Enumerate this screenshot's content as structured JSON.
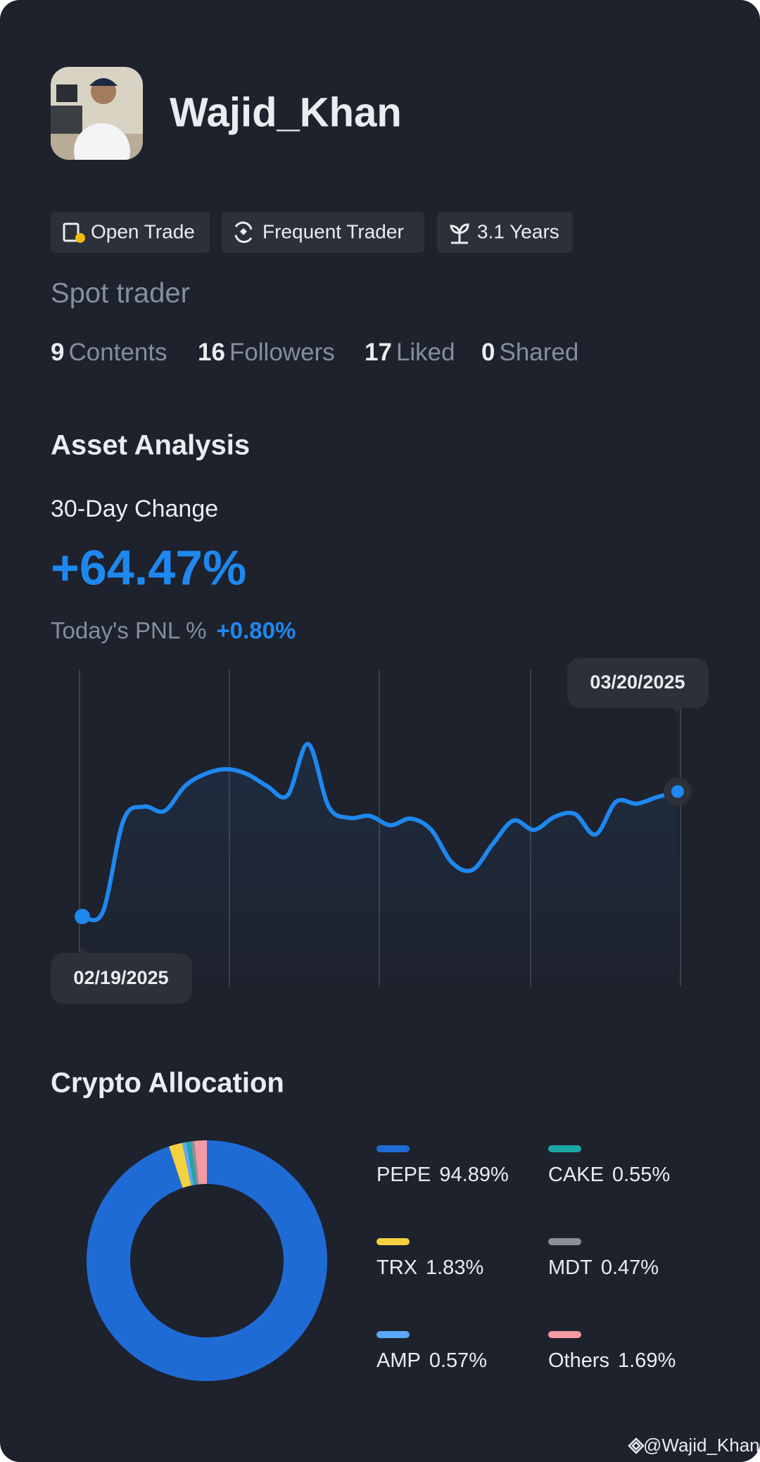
{
  "profile": {
    "name": "Wajid_Khan",
    "role": "Spot trader"
  },
  "badges": [
    "Open Trade",
    "Frequent Trader",
    "3.1 Years"
  ],
  "stats": [
    {
      "value": 9,
      "label": "Contents"
    },
    {
      "value": 16,
      "label": "Followers"
    },
    {
      "value": 17,
      "label": "Liked"
    },
    {
      "value": 0,
      "label": "Shared"
    }
  ],
  "asset_analysis": {
    "title": "Asset Analysis",
    "change_label": "30-Day Change",
    "change_value": "+64.47%",
    "pnl_label": "Today's PNL %",
    "pnl_value": "+0.80%"
  },
  "chart_data": [
    {
      "type": "line",
      "categories": [
        "02/19/2025",
        null,
        null,
        null,
        null,
        null,
        null,
        null,
        null,
        null,
        null,
        null,
        null,
        null,
        null,
        null,
        null,
        null,
        null,
        null,
        null,
        null,
        null,
        null,
        null,
        null,
        null,
        null,
        null,
        "03/20/2025"
      ],
      "values": [
        0,
        2.4,
        49.5,
        56.7,
        54.4,
        67.3,
        73.6,
        76.0,
        73.6,
        67.3,
        62.5,
        89.0,
        56.7,
        50.9,
        51.9,
        47.1,
        50.5,
        44.7,
        27.9,
        24.0,
        37.5,
        49.5,
        44.7,
        51.4,
        52.9,
        42.3,
        59.2,
        58.2,
        61.6,
        64.47
      ],
      "color": "#1e88f0"
    },
    {
      "type": "pie",
      "title": "Crypto Allocation",
      "categories": [
        "PEPE",
        "TRX",
        "AMP",
        "CAKE",
        "MDT",
        "Others"
      ],
      "values": [
        94.89,
        1.83,
        0.57,
        0.55,
        0.47,
        1.69
      ],
      "value_labels": [
        "94.89%",
        "1.83%",
        "0.57%",
        "0.55%",
        "0.47%",
        "1.69%"
      ],
      "colors": [
        "#1f6bd6",
        "#f5d142",
        "#5ba7f7",
        "#1ba8a8",
        "#8a8f98",
        "#f49aa2"
      ]
    }
  ],
  "watermark": "@Wajid_Khan"
}
